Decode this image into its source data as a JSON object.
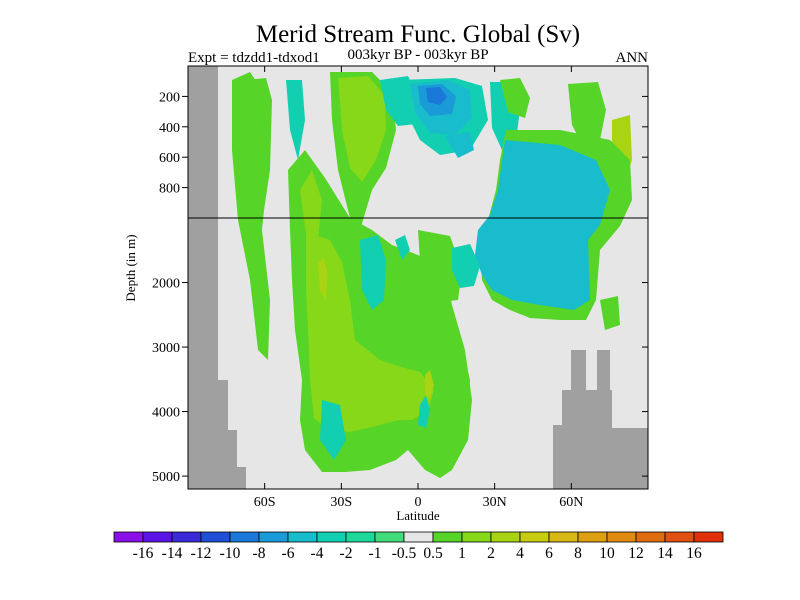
{
  "chart_data": {
    "type": "heatmap",
    "title": "Merid Stream Func. Global (Sv)",
    "left_label": "Expt = tdzdd1-tdxod1",
    "center_label": "003kyr BP - 003kyr BP",
    "right_label": "ANN",
    "xlabel": "Latitude",
    "ylabel": "Depth (in m)",
    "x_ticks": [
      {
        "value": -60,
        "label": "60S"
      },
      {
        "value": -30,
        "label": "30S"
      },
      {
        "value": 0,
        "label": "0"
      },
      {
        "value": 30,
        "label": "30N"
      },
      {
        "value": 60,
        "label": "60N"
      }
    ],
    "y_ticks_upper": [
      200,
      400,
      600,
      800
    ],
    "y_ticks_lower": [
      2000,
      3000,
      4000,
      5000
    ],
    "xlim": [
      -90,
      90
    ],
    "ylim_upper": [
      0,
      1000
    ],
    "ylim_lower": [
      1000,
      5200
    ],
    "colorbar": {
      "labels": [
        "-16",
        "-14",
        "-12",
        "-10",
        "-8",
        "-6",
        "-4",
        "-2",
        "-1",
        "-0.5",
        "0.5",
        "1",
        "2",
        "4",
        "6",
        "8",
        "10",
        "12",
        "14",
        "16"
      ],
      "colors": [
        "#8a10e8",
        "#5a14e6",
        "#3a2ad8",
        "#1f4fd6",
        "#1a78d8",
        "#1a9ad6",
        "#18bccc",
        "#12cfb2",
        "#1ed79a",
        "#42da7a",
        "#e6e6e6",
        "#56d428",
        "#86d818",
        "#a8d414",
        "#c8cc10",
        "#d8b812",
        "#dca012",
        "#e08a12",
        "#e06c10",
        "#e05010",
        "#e0300a"
      ]
    },
    "colors": {
      "background": "#e6e6e6",
      "land": "#a0a0a0"
    }
  }
}
